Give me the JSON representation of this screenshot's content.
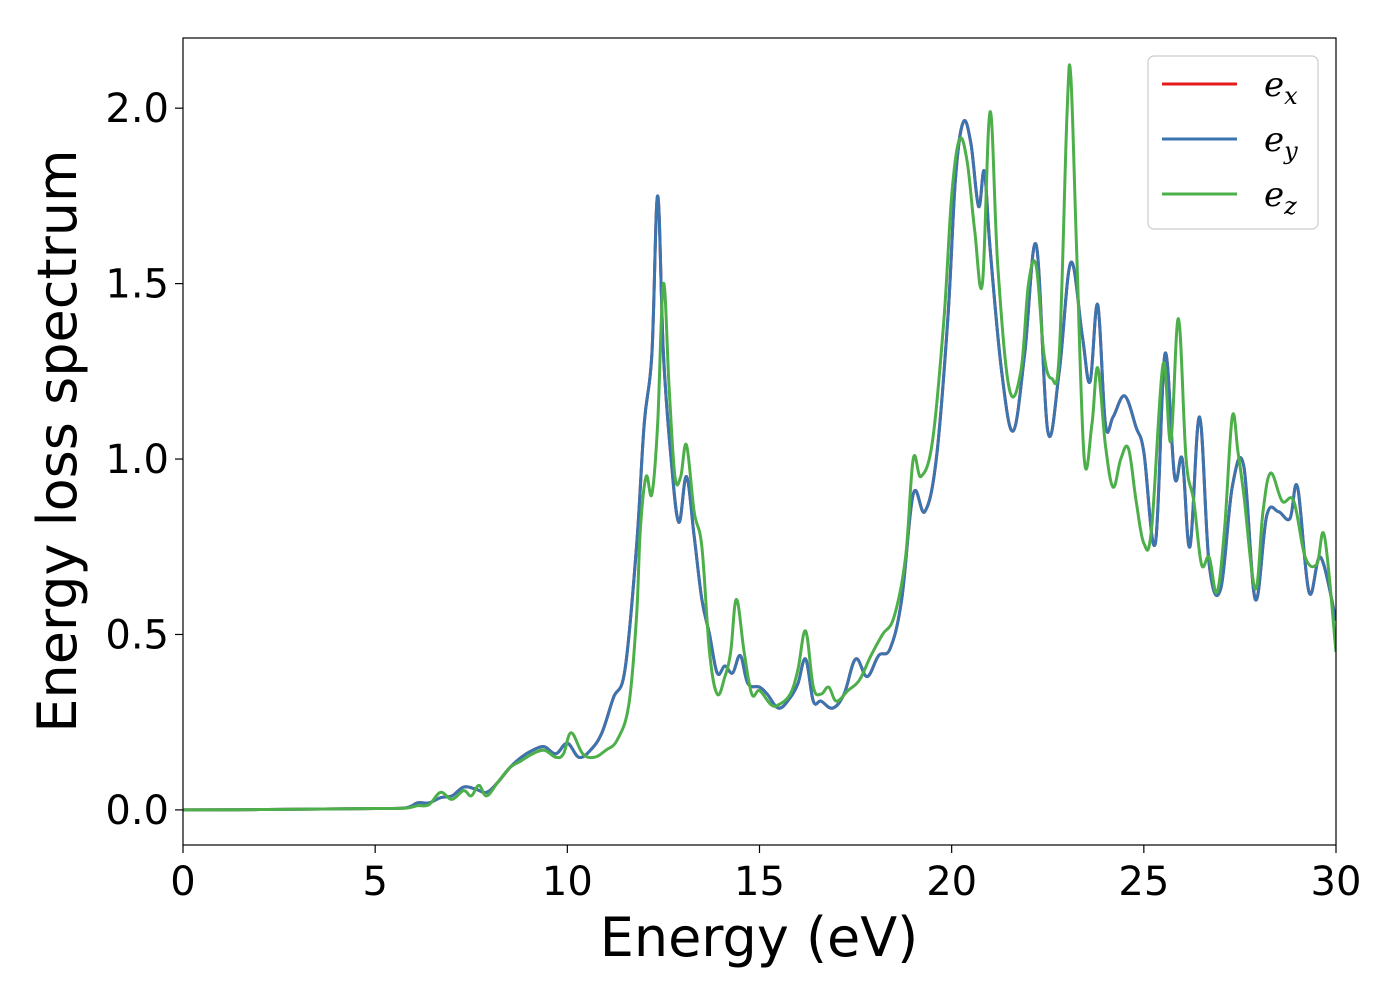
{
  "chart_data": {
    "type": "line",
    "title": "",
    "xlabel": "Energy (eV)",
    "ylabel": "Energy loss spectrum",
    "xlim": [
      0,
      30
    ],
    "ylim": [
      -0.1,
      2.2
    ],
    "xticks": [
      0,
      5,
      10,
      15,
      20,
      25,
      30
    ],
    "xtick_labels": [
      "0",
      "5",
      "10",
      "15",
      "20",
      "25",
      "30"
    ],
    "yticks": [
      0.0,
      0.5,
      1.0,
      1.5,
      2.0
    ],
    "ytick_labels": [
      "0.0",
      "0.5",
      "1.0",
      "1.5",
      "2.0"
    ],
    "grid": false,
    "legend_position": "top-right",
    "series": [
      {
        "name": "e_x",
        "legend_base": "e",
        "legend_sub": "x",
        "color": "#e41a1c",
        "x": [
          0,
          2,
          4,
          5,
          5.8,
          6.1,
          6.4,
          6.7,
          7.0,
          7.3,
          7.6,
          7.9,
          8.2,
          8.5,
          8.8,
          9.1,
          9.4,
          9.7,
          10.0,
          10.3,
          10.6,
          10.9,
          11.2,
          11.5,
          11.8,
          12.0,
          12.2,
          12.35,
          12.5,
          12.7,
          12.9,
          13.1,
          13.3,
          13.5,
          13.7,
          13.9,
          14.1,
          14.3,
          14.5,
          14.7,
          15.0,
          15.2,
          15.5,
          15.8,
          16.0,
          16.2,
          16.4,
          16.6,
          16.9,
          17.2,
          17.5,
          17.8,
          18.1,
          18.4,
          18.7,
          19.0,
          19.3,
          19.6,
          19.9,
          20.1,
          20.3,
          20.5,
          20.7,
          20.85,
          21.0,
          21.3,
          21.6,
          21.9,
          22.2,
          22.5,
          22.8,
          23.1,
          23.4,
          23.6,
          23.8,
          24.0,
          24.2,
          24.5,
          24.8,
          25.0,
          25.3,
          25.55,
          25.8,
          26.0,
          26.2,
          26.45,
          26.7,
          27.0,
          27.3,
          27.6,
          27.9,
          28.2,
          28.5,
          28.8,
          29.0,
          29.3,
          29.6,
          30.0
        ],
        "values": [
          0,
          0.001,
          0.003,
          0.004,
          0.006,
          0.02,
          0.02,
          0.035,
          0.04,
          0.065,
          0.06,
          0.05,
          0.08,
          0.12,
          0.15,
          0.17,
          0.18,
          0.16,
          0.19,
          0.15,
          0.17,
          0.22,
          0.32,
          0.4,
          0.75,
          1.1,
          1.3,
          1.75,
          1.3,
          1.0,
          0.82,
          0.95,
          0.78,
          0.6,
          0.5,
          0.39,
          0.41,
          0.39,
          0.44,
          0.36,
          0.35,
          0.33,
          0.29,
          0.32,
          0.36,
          0.43,
          0.31,
          0.31,
          0.29,
          0.33,
          0.43,
          0.38,
          0.44,
          0.46,
          0.6,
          0.9,
          0.85,
          1.0,
          1.4,
          1.8,
          1.96,
          1.9,
          1.72,
          1.82,
          1.6,
          1.25,
          1.08,
          1.3,
          1.61,
          1.08,
          1.25,
          1.56,
          1.35,
          1.22,
          1.44,
          1.1,
          1.12,
          1.18,
          1.09,
          1.02,
          0.76,
          1.3,
          0.95,
          1.0,
          0.75,
          1.12,
          0.7,
          0.63,
          0.92,
          0.98,
          0.6,
          0.84,
          0.85,
          0.83,
          0.92,
          0.62,
          0.72,
          0.54
        ]
      },
      {
        "name": "e_y",
        "legend_base": "e",
        "legend_sub": "y",
        "color": "#3a75b0",
        "x": [
          0,
          2,
          4,
          5,
          5.8,
          6.1,
          6.4,
          6.7,
          7.0,
          7.3,
          7.6,
          7.9,
          8.2,
          8.5,
          8.8,
          9.1,
          9.4,
          9.7,
          10.0,
          10.3,
          10.6,
          10.9,
          11.2,
          11.5,
          11.8,
          12.0,
          12.2,
          12.35,
          12.5,
          12.7,
          12.9,
          13.1,
          13.3,
          13.5,
          13.7,
          13.9,
          14.1,
          14.3,
          14.5,
          14.7,
          15.0,
          15.2,
          15.5,
          15.8,
          16.0,
          16.2,
          16.4,
          16.6,
          16.9,
          17.2,
          17.5,
          17.8,
          18.1,
          18.4,
          18.7,
          19.0,
          19.3,
          19.6,
          19.9,
          20.1,
          20.3,
          20.5,
          20.7,
          20.85,
          21.0,
          21.3,
          21.6,
          21.9,
          22.2,
          22.5,
          22.8,
          23.1,
          23.4,
          23.6,
          23.8,
          24.0,
          24.2,
          24.5,
          24.8,
          25.0,
          25.3,
          25.55,
          25.8,
          26.0,
          26.2,
          26.45,
          26.7,
          27.0,
          27.3,
          27.6,
          27.9,
          28.2,
          28.5,
          28.8,
          29.0,
          29.3,
          29.6,
          30.0
        ],
        "values": [
          0,
          0.001,
          0.003,
          0.004,
          0.006,
          0.02,
          0.02,
          0.035,
          0.04,
          0.065,
          0.06,
          0.05,
          0.08,
          0.12,
          0.15,
          0.17,
          0.18,
          0.16,
          0.19,
          0.15,
          0.17,
          0.22,
          0.32,
          0.4,
          0.75,
          1.1,
          1.3,
          1.75,
          1.3,
          1.0,
          0.82,
          0.95,
          0.78,
          0.6,
          0.5,
          0.39,
          0.41,
          0.39,
          0.44,
          0.36,
          0.35,
          0.33,
          0.29,
          0.32,
          0.36,
          0.43,
          0.31,
          0.31,
          0.29,
          0.33,
          0.43,
          0.38,
          0.44,
          0.46,
          0.6,
          0.9,
          0.85,
          1.0,
          1.4,
          1.8,
          1.96,
          1.9,
          1.72,
          1.82,
          1.6,
          1.25,
          1.08,
          1.3,
          1.61,
          1.08,
          1.25,
          1.56,
          1.35,
          1.22,
          1.44,
          1.1,
          1.12,
          1.18,
          1.09,
          1.02,
          0.76,
          1.3,
          0.95,
          1.0,
          0.75,
          1.12,
          0.7,
          0.63,
          0.92,
          0.98,
          0.6,
          0.84,
          0.85,
          0.83,
          0.92,
          0.62,
          0.72,
          0.54
        ]
      },
      {
        "name": "e_z",
        "legend_base": "e",
        "legend_sub": "z",
        "color": "#4daf4a",
        "x": [
          0,
          2,
          4,
          5,
          5.8,
          6.1,
          6.4,
          6.7,
          7.0,
          7.3,
          7.5,
          7.7,
          7.9,
          8.2,
          8.5,
          8.8,
          9.1,
          9.4,
          9.7,
          9.9,
          10.1,
          10.4,
          10.7,
          11.0,
          11.3,
          11.6,
          11.8,
          11.9,
          12.05,
          12.2,
          12.35,
          12.5,
          12.65,
          12.8,
          12.95,
          13.1,
          13.3,
          13.5,
          13.7,
          13.9,
          14.1,
          14.25,
          14.4,
          14.6,
          14.8,
          15.0,
          15.3,
          15.5,
          15.8,
          16.0,
          16.2,
          16.4,
          16.6,
          16.8,
          17.0,
          17.3,
          17.6,
          17.9,
          18.2,
          18.5,
          18.8,
          19.0,
          19.2,
          19.5,
          19.8,
          20.0,
          20.2,
          20.4,
          20.6,
          20.8,
          21.0,
          21.2,
          21.5,
          21.8,
          22.0,
          22.2,
          22.4,
          22.6,
          22.8,
          23.0,
          23.1,
          23.25,
          23.45,
          23.65,
          23.8,
          24.0,
          24.2,
          24.4,
          24.6,
          24.8,
          25.0,
          25.2,
          25.5,
          25.7,
          25.9,
          26.1,
          26.3,
          26.5,
          26.7,
          26.9,
          27.1,
          27.3,
          27.45,
          27.6,
          27.9,
          28.1,
          28.3,
          28.6,
          28.9,
          29.2,
          29.5,
          29.7,
          30.0
        ],
        "values": [
          0,
          0.001,
          0.003,
          0.004,
          0.005,
          0.012,
          0.015,
          0.05,
          0.03,
          0.055,
          0.04,
          0.07,
          0.04,
          0.08,
          0.12,
          0.14,
          0.16,
          0.17,
          0.15,
          0.16,
          0.22,
          0.16,
          0.15,
          0.17,
          0.2,
          0.3,
          0.55,
          0.8,
          0.95,
          0.9,
          1.1,
          1.5,
          1.2,
          0.95,
          0.95,
          1.04,
          0.85,
          0.75,
          0.45,
          0.33,
          0.38,
          0.45,
          0.6,
          0.45,
          0.33,
          0.34,
          0.3,
          0.3,
          0.33,
          0.4,
          0.51,
          0.35,
          0.33,
          0.35,
          0.31,
          0.34,
          0.37,
          0.44,
          0.5,
          0.55,
          0.72,
          1.0,
          0.95,
          1.05,
          1.4,
          1.75,
          1.91,
          1.85,
          1.65,
          1.5,
          1.99,
          1.55,
          1.2,
          1.25,
          1.5,
          1.55,
          1.3,
          1.23,
          1.3,
          1.98,
          2.09,
          1.6,
          1.0,
          1.1,
          1.26,
          1.04,
          0.92,
          1.0,
          1.03,
          0.88,
          0.76,
          0.8,
          1.27,
          1.05,
          1.4,
          1.0,
          0.88,
          0.7,
          0.72,
          0.62,
          0.8,
          1.12,
          1.02,
          0.9,
          0.63,
          0.85,
          0.96,
          0.88,
          0.88,
          0.72,
          0.7,
          0.78,
          0.45
        ]
      }
    ]
  }
}
